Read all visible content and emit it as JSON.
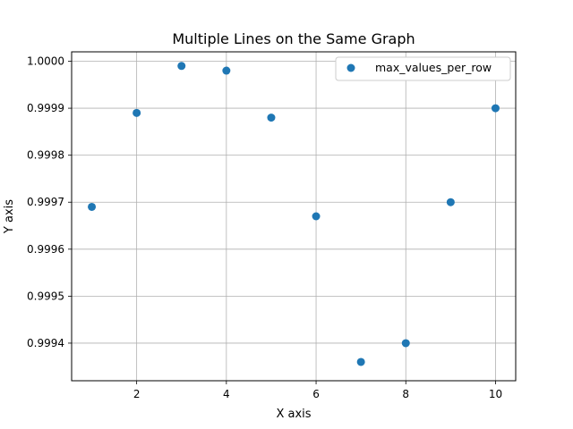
{
  "chart_data": {
    "type": "scatter",
    "title": "Multiple Lines on the Same Graph",
    "xlabel": "X axis",
    "ylabel": "Y axis",
    "xlim": [
      0.55,
      10.45
    ],
    "ylim": [
      0.99932,
      1.00002
    ],
    "xticks": [
      2,
      4,
      6,
      8,
      10
    ],
    "xtick_labels": [
      "2",
      "4",
      "6",
      "8",
      "10"
    ],
    "yticks": [
      0.9994,
      0.9995,
      0.9996,
      0.9997,
      0.9998,
      0.9999,
      1.0
    ],
    "ytick_labels": [
      "0.9994",
      "0.9995",
      "0.9996",
      "0.9997",
      "0.9998",
      "0.9999",
      "1.0000"
    ],
    "grid": true,
    "legend_position": "top-right",
    "series": [
      {
        "name": "max_values_per_row",
        "color": "#1f77b4",
        "x": [
          1,
          2,
          3,
          4,
          5,
          6,
          7,
          8,
          9,
          10
        ],
        "y": [
          0.99969,
          0.99989,
          0.99999,
          0.99998,
          0.99988,
          0.99967,
          0.99936,
          0.9994,
          0.9997,
          0.9999
        ]
      }
    ]
  }
}
